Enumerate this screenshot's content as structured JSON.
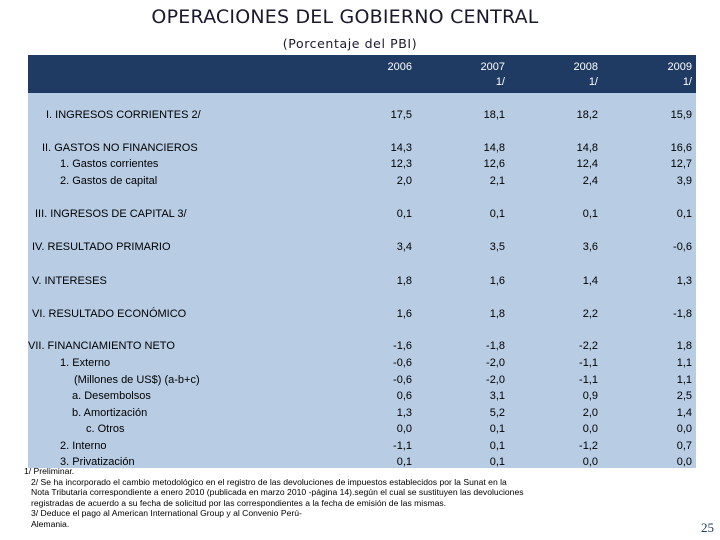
{
  "title": "OPERACIONES DEL GOBIERNO CENTRAL",
  "subtitle": "(Porcentaje del PBI)",
  "years": [
    {
      "year": "2006",
      "note": ""
    },
    {
      "year": "2007",
      "note": "1/"
    },
    {
      "year": "2008",
      "note": "1/"
    },
    {
      "year": "2009",
      "note": "1/"
    }
  ],
  "rows": [
    {
      "label": "I.  INGRESOS CORRIENTES 2/",
      "values": [
        "17,5",
        "18,1",
        "18,2",
        "15,9"
      ]
    },
    {
      "label": "II.  GASTOS NO FINANCIEROS",
      "values": [
        "14,3",
        "14,8",
        "14,8",
        "16,6"
      ]
    },
    {
      "label": "1.  Gastos corrientes",
      "values": [
        "12,3",
        "12,6",
        "12,4",
        "12,7"
      ]
    },
    {
      "label": "2.  Gastos de capital",
      "values": [
        "2,0",
        "2,1",
        "2,4",
        "3,9"
      ]
    },
    {
      "label": "III.  INGRESOS DE CAPITAL  3/",
      "values": [
        "0,1",
        "0,1",
        "0,1",
        "0,1"
      ]
    },
    {
      "label": "IV.  RESULTADO PRIMARIO",
      "values": [
        "3,4",
        "3,5",
        "3,6",
        "-0,6"
      ]
    },
    {
      "label": "V.  INTERESES",
      "values": [
        "1,8",
        "1,6",
        "1,4",
        "1,3"
      ]
    },
    {
      "label": "VI.  RESULTADO ECONÓMICO",
      "values": [
        "1,6",
        "1,8",
        "2,2",
        "-1,8"
      ]
    },
    {
      "label": "VII.  FINANCIAMIENTO NETO",
      "values": [
        "-1,6",
        "-1,8",
        "-2,2",
        "1,8"
      ]
    },
    {
      "label": "1.  Externo",
      "values": [
        "-0,6",
        "-2,0",
        "-1,1",
        "1,1"
      ]
    },
    {
      "label": "(Millones de US$) (a-b+c)",
      "values": [
        "-0,6",
        "-2,0",
        "-1,1",
        "1,1"
      ]
    },
    {
      "label": "a. Desembolsos",
      "values": [
        "0,6",
        "3,1",
        "0,9",
        "2,5"
      ]
    },
    {
      "label": "b. Amortización",
      "values": [
        "1,3",
        "5,2",
        "2,0",
        "1,4"
      ]
    },
    {
      "label": "c. Otros",
      "values": [
        "0,0",
        "0,1",
        "0,0",
        "0,0"
      ]
    },
    {
      "label": "2.  Interno",
      "values": [
        "-1,1",
        "0,1",
        "-1,2",
        "0,7"
      ]
    },
    {
      "label": "3.  Privatización",
      "values": [
        "0,1",
        "0,1",
        "0,0",
        "0,0"
      ]
    }
  ],
  "footnotes": [
    "1/ Preliminar.",
    "2/ Se ha incorporado el cambio metodológico en el registro de las devoluciones de impuestos establecidos por la Sunat en la",
    "Nota Tributaria correspondiente a enero 2010 (publicada en marzo 2010 -página 14).según el cual se sustituyen las devoluciones",
    "registradas de acuerdo a su fecha de solicitud por las correspondientes a la fecha de emisión de las mismas.",
    "3/  Deduce el pago al American International Group y al Convenio Perú-",
    "Alemania."
  ],
  "page_number": "25"
}
